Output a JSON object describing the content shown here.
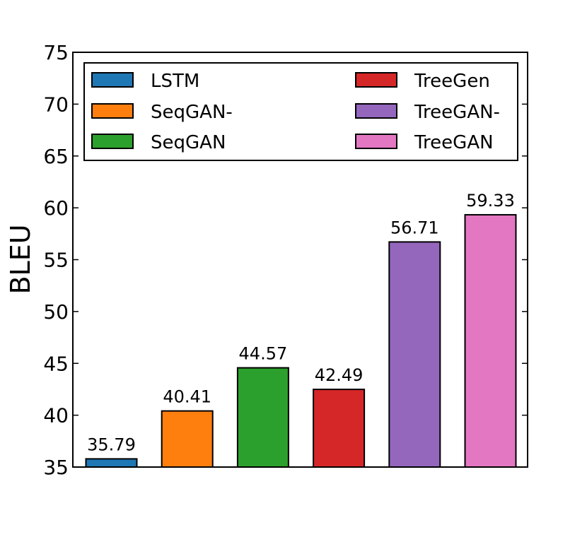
{
  "chart_data": {
    "type": "bar",
    "title": "",
    "xlabel": "",
    "ylabel": "BLEU",
    "ylim": [
      35,
      75
    ],
    "yticks": [
      "35",
      "40",
      "45",
      "50",
      "55",
      "60",
      "65",
      "70",
      "75"
    ],
    "categories": [
      "LSTM",
      "SeqGAN-",
      "SeqGAN",
      "TreeGen",
      "TreeGAN-",
      "TreeGAN"
    ],
    "values": [
      35.79,
      40.41,
      44.57,
      42.49,
      56.71,
      59.33
    ],
    "value_labels": [
      "35.79",
      "40.41",
      "44.57",
      "42.49",
      "56.71",
      "59.33"
    ],
    "colors": [
      "#1f77b4",
      "#ff7f0e",
      "#2ca02c",
      "#d62728",
      "#9467bd",
      "#e377c2"
    ],
    "legend": {
      "placement": "top",
      "columns": 2,
      "entries": [
        "LSTM",
        "SeqGAN-",
        "SeqGAN",
        "TreeGen",
        "TreeGAN-",
        "TreeGAN"
      ]
    },
    "grid": false
  }
}
